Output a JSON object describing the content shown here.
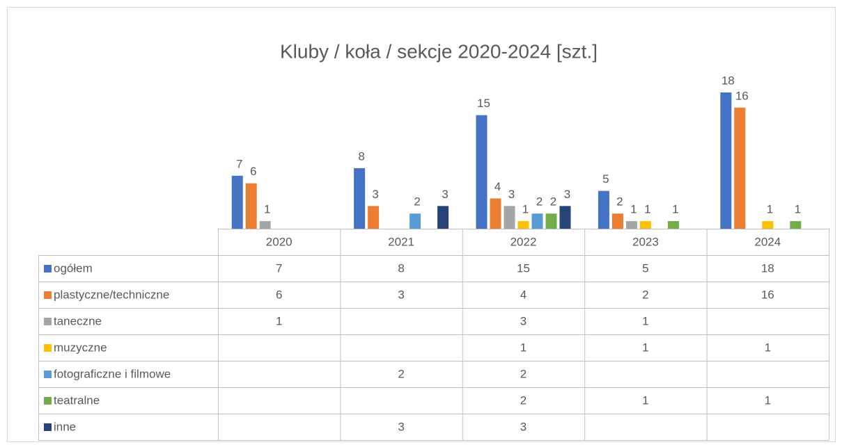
{
  "chart_data": {
    "type": "bar",
    "title": "Kluby / koła / sekcje 2020-2024 [szt.]",
    "categories": [
      "2020",
      "2021",
      "2022",
      "2023",
      "2024"
    ],
    "series": [
      {
        "name": "ogółem",
        "color": "#4472c4",
        "values": [
          7,
          8,
          15,
          5,
          18
        ]
      },
      {
        "name": "plastyczne/techniczne",
        "color": "#ed7d31",
        "values": [
          6,
          3,
          4,
          2,
          16
        ]
      },
      {
        "name": "taneczne",
        "color": "#a5a5a5",
        "values": [
          1,
          null,
          3,
          1,
          null
        ]
      },
      {
        "name": "muzyczne",
        "color": "#ffc000",
        "values": [
          null,
          null,
          1,
          1,
          1
        ]
      },
      {
        "name": "fotograficzne i filmowe",
        "color": "#5b9bd5",
        "values": [
          null,
          2,
          2,
          null,
          null
        ]
      },
      {
        "name": "teatralne",
        "color": "#70ad47",
        "values": [
          null,
          null,
          2,
          1,
          1
        ]
      },
      {
        "name": "inne",
        "color": "#264478",
        "values": [
          null,
          3,
          3,
          null,
          null
        ]
      }
    ]
  }
}
